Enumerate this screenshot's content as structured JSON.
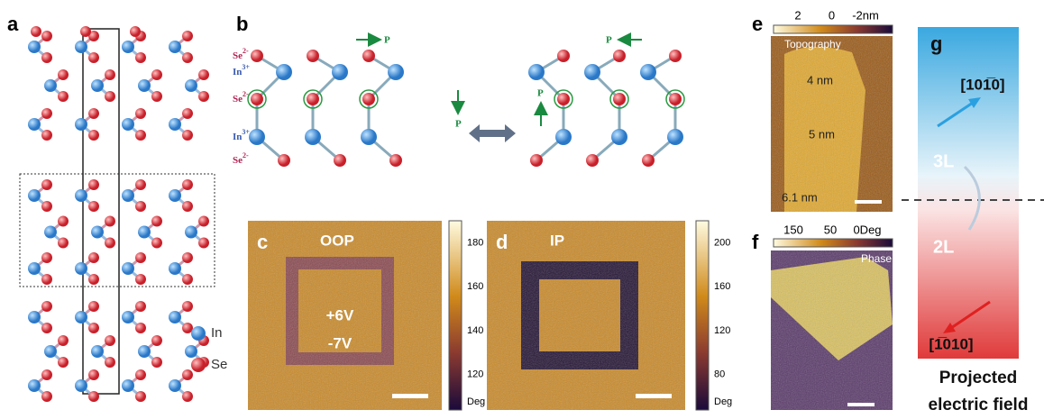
{
  "panels": {
    "a": {
      "label": "a",
      "legend": [
        "In",
        "Se"
      ]
    },
    "b": {
      "label": "b",
      "ions": [
        {
          "element": "Se",
          "charge": "2-"
        },
        {
          "element": "In",
          "charge": "3+"
        },
        {
          "element": "Se",
          "charge": "2-"
        },
        {
          "element": "In",
          "charge": "3+"
        },
        {
          "element": "Se",
          "charge": "2-"
        }
      ],
      "polarization": [
        "P",
        "P",
        "P",
        "P"
      ]
    },
    "c": {
      "label": "c",
      "mode": "OOP",
      "bias": [
        "+6V",
        "-7V"
      ],
      "colorbar_ticks": [
        180,
        160,
        140,
        120
      ],
      "unit": "Deg"
    },
    "d": {
      "label": "d",
      "mode": "IP",
      "colorbar_ticks": [
        200,
        160,
        120,
        80
      ],
      "unit": "Deg"
    },
    "e": {
      "label": "e",
      "colorbar_ticks": [
        "2",
        "0",
        "-2nm"
      ],
      "title": "Topography",
      "heights": [
        "4 nm",
        "5 nm",
        "6.1 nm"
      ]
    },
    "f": {
      "label": "f",
      "colorbar_ticks": [
        "150",
        "50",
        "0Deg"
      ],
      "title": "Phase"
    },
    "g": {
      "label": "g",
      "top_direction": "[101̅0]",
      "bottom_direction": "[1̅010]",
      "top_layer": "3L",
      "bottom_layer": "2L",
      "caption": [
        "Projected",
        "electric field"
      ]
    }
  }
}
